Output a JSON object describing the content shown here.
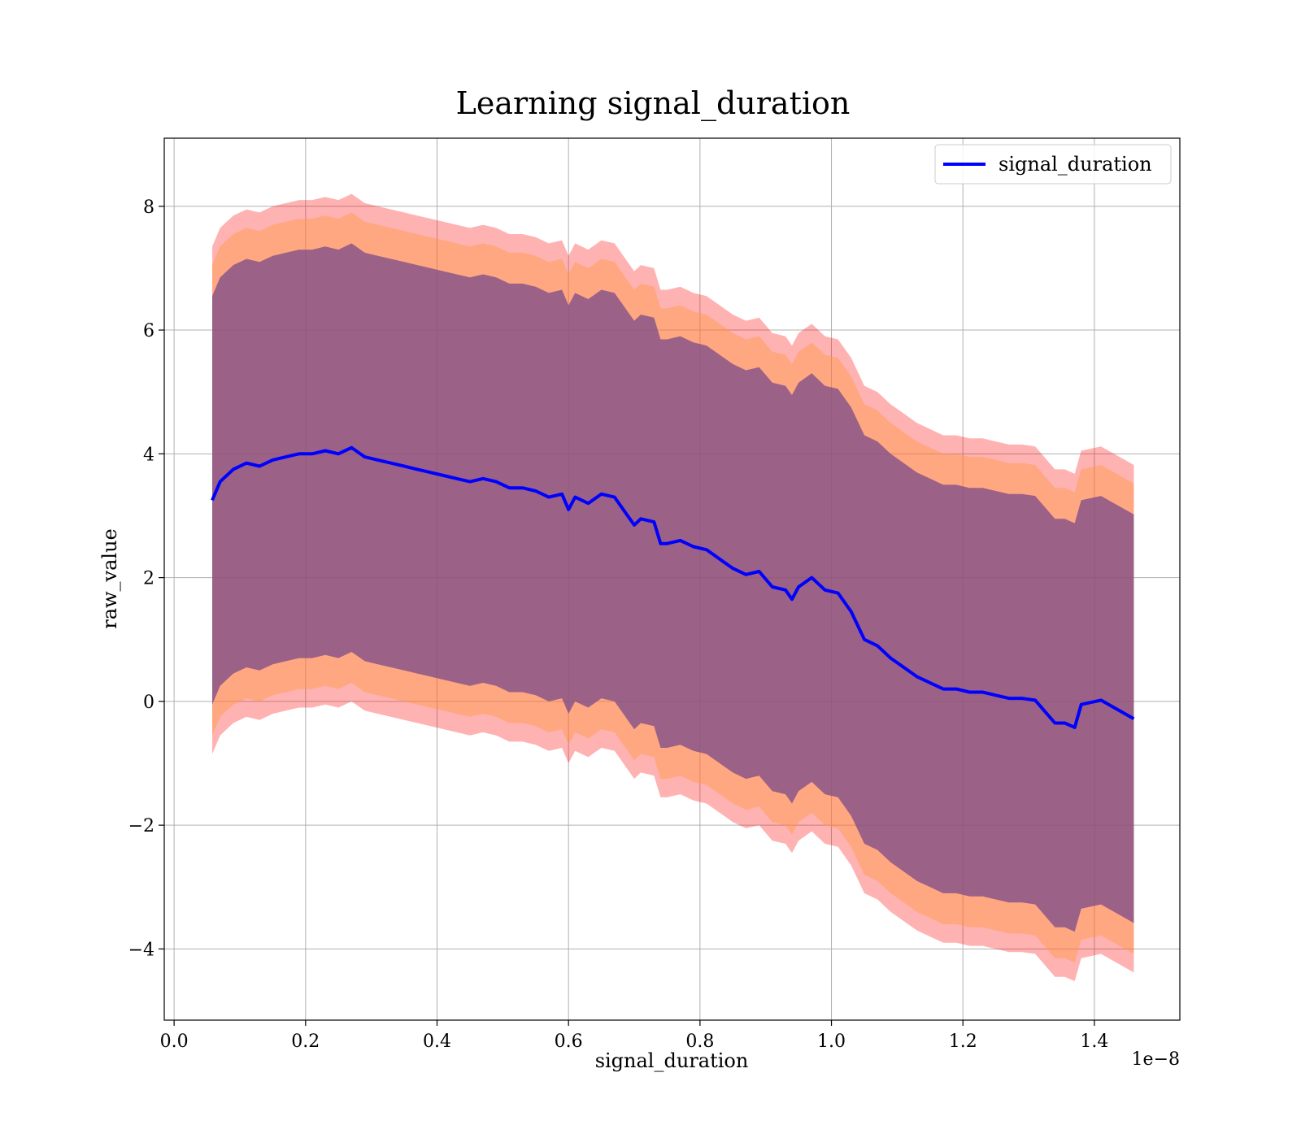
{
  "chart_data": {
    "type": "line",
    "title": "Learning signal_duration",
    "xlabel": "signal_duration",
    "ylabel": "raw_value",
    "x_offset_text": "1e−8",
    "xlim": [
      -0.015,
      1.53
    ],
    "ylim": [
      -5.15,
      9.1
    ],
    "x_ticks": [
      0.0,
      0.2,
      0.4,
      0.6,
      0.8,
      1.0,
      1.2,
      1.4
    ],
    "x_tick_labels": [
      "0.0",
      "0.2",
      "0.4",
      "0.6",
      "0.8",
      "1.0",
      "1.2",
      "1.4"
    ],
    "y_ticks": [
      -4,
      -2,
      0,
      2,
      4,
      6,
      8
    ],
    "y_tick_labels": [
      "−4",
      "−2",
      "0",
      "2",
      "4",
      "6",
      "8"
    ],
    "grid": true,
    "legend": {
      "position": "top-right",
      "entries": [
        "signal_duration"
      ]
    },
    "colors": {
      "line": "#0000ff",
      "band_outer": "#ff0000",
      "band_mid": "#ff9944",
      "band_inner": "#7a4a8a"
    },
    "series": [
      {
        "name": "signal_duration",
        "x": [
          0.058,
          0.07,
          0.09,
          0.11,
          0.13,
          0.15,
          0.17,
          0.19,
          0.21,
          0.23,
          0.25,
          0.27,
          0.29,
          0.31,
          0.33,
          0.35,
          0.37,
          0.39,
          0.41,
          0.43,
          0.45,
          0.47,
          0.49,
          0.51,
          0.53,
          0.55,
          0.57,
          0.59,
          0.6,
          0.61,
          0.63,
          0.65,
          0.67,
          0.69,
          0.7,
          0.71,
          0.73,
          0.74,
          0.75,
          0.77,
          0.79,
          0.81,
          0.83,
          0.85,
          0.87,
          0.89,
          0.91,
          0.93,
          0.94,
          0.95,
          0.97,
          0.99,
          1.01,
          1.03,
          1.05,
          1.07,
          1.09,
          1.11,
          1.13,
          1.15,
          1.17,
          1.19,
          1.21,
          1.23,
          1.25,
          1.27,
          1.29,
          1.31,
          1.34,
          1.355,
          1.37,
          1.38,
          1.41,
          1.46
        ],
        "y": [
          3.25,
          3.55,
          3.75,
          3.85,
          3.8,
          3.9,
          3.95,
          4.0,
          4.0,
          4.05,
          4.0,
          4.1,
          3.95,
          3.9,
          3.85,
          3.8,
          3.75,
          3.7,
          3.65,
          3.6,
          3.55,
          3.6,
          3.55,
          3.45,
          3.45,
          3.4,
          3.3,
          3.35,
          3.1,
          3.3,
          3.2,
          3.35,
          3.3,
          3.0,
          2.85,
          2.95,
          2.9,
          2.55,
          2.55,
          2.6,
          2.5,
          2.45,
          2.3,
          2.15,
          2.05,
          2.1,
          1.85,
          1.8,
          1.65,
          1.85,
          2.0,
          1.8,
          1.75,
          1.45,
          1.0,
          0.9,
          0.7,
          0.55,
          0.4,
          0.3,
          0.2,
          0.2,
          0.15,
          0.15,
          0.1,
          0.05,
          0.05,
          0.02,
          -0.35,
          -0.35,
          -0.42,
          -0.05,
          0.02,
          -0.28
        ]
      }
    ],
    "band_half_widths": {
      "outer": 4.1,
      "mid": 3.8,
      "inner": 3.3
    }
  }
}
